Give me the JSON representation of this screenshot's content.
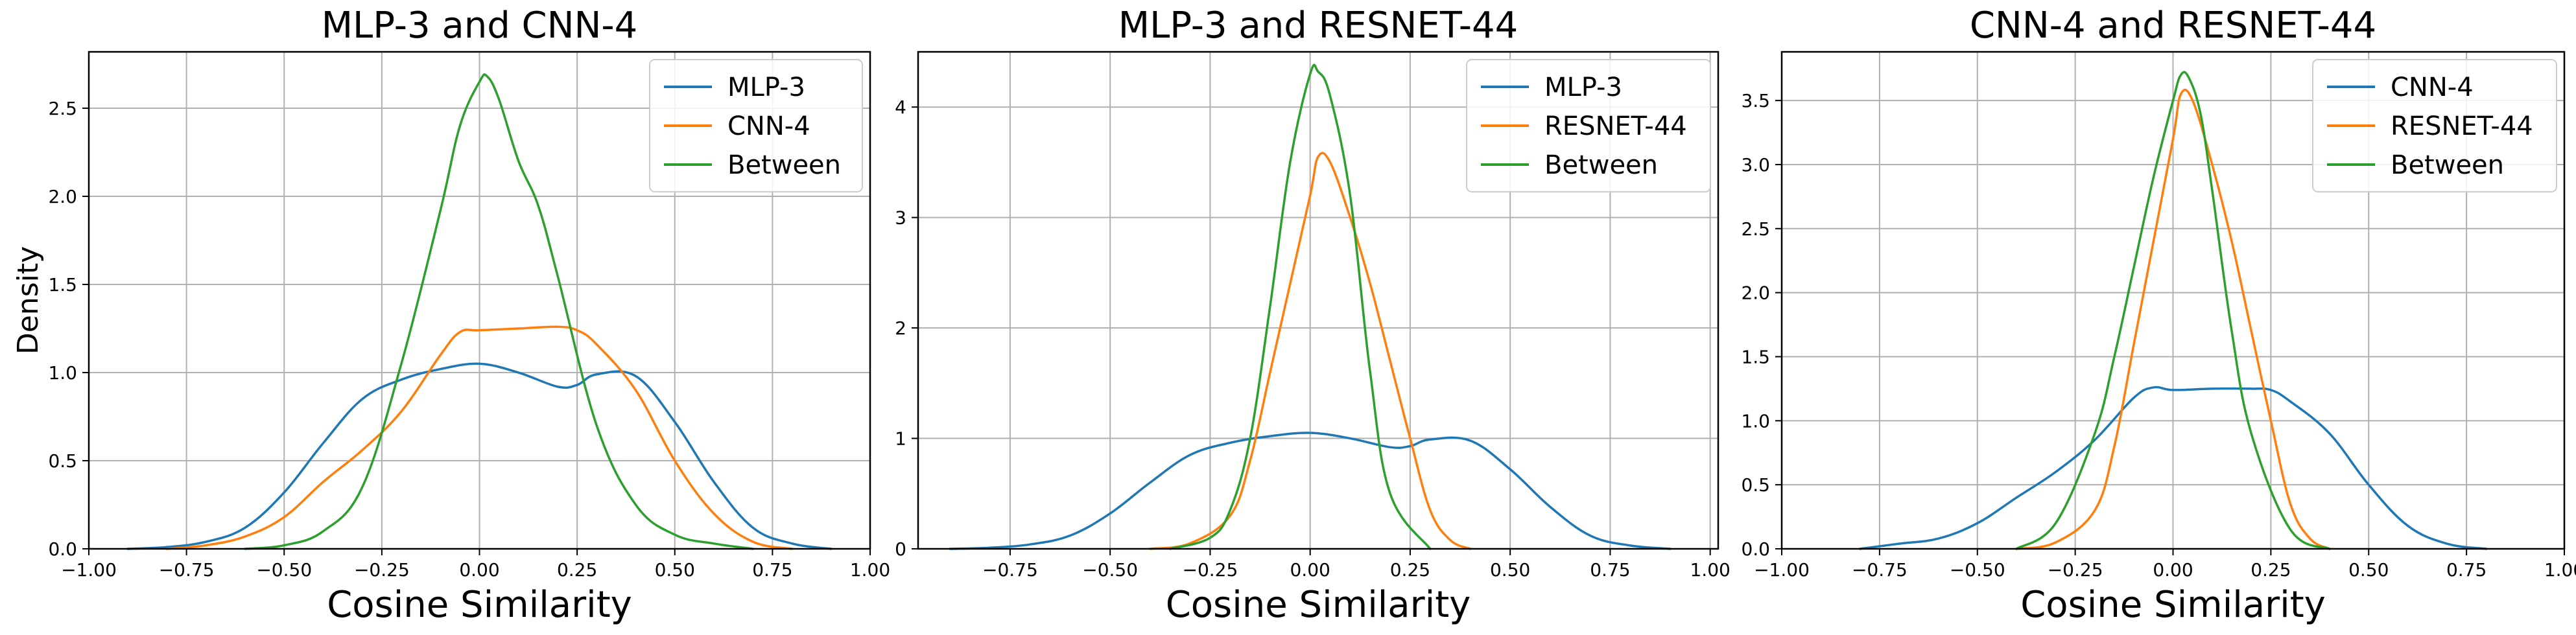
{
  "chart_data": [
    {
      "type": "line",
      "title": "MLP-3 and CNN-4",
      "xlabel": "Cosine Similarity",
      "ylabel": "Density",
      "xlim": [
        -1.0,
        1.0
      ],
      "ylim": [
        0,
        2.82
      ],
      "xticks": [
        -1.0,
        -0.75,
        -0.5,
        -0.25,
        0.0,
        0.25,
        0.5,
        0.75,
        1.0
      ],
      "xtick_labels": [
        "−1.00",
        "−0.75",
        "−0.50",
        "−0.25",
        "0.00",
        "0.25",
        "0.50",
        "0.75",
        "1.00"
      ],
      "yticks": [
        0,
        0.5,
        1.0,
        1.5,
        2.0,
        2.5
      ],
      "ytick_labels": [
        "0.0",
        "0.5",
        "1.0",
        "1.5",
        "2.0",
        "2.5"
      ],
      "grid": true,
      "legend_position": "top-right",
      "series": [
        {
          "name": "MLP-3",
          "color": "#1f77b4",
          "x": [
            -0.9,
            -0.8,
            -0.7,
            -0.6,
            -0.5,
            -0.4,
            -0.3,
            -0.2,
            -0.1,
            0.0,
            0.1,
            0.2,
            0.25,
            0.3,
            0.4,
            0.5,
            0.6,
            0.7,
            0.8,
            0.9
          ],
          "y": [
            0.0,
            0.01,
            0.04,
            0.12,
            0.32,
            0.6,
            0.85,
            0.96,
            1.02,
            1.05,
            1.0,
            0.92,
            0.93,
            0.99,
            0.98,
            0.72,
            0.38,
            0.12,
            0.03,
            0.0
          ]
        },
        {
          "name": "CNN-4",
          "color": "#ff7f0e",
          "x": [
            -0.8,
            -0.7,
            -0.6,
            -0.5,
            -0.4,
            -0.3,
            -0.2,
            -0.1,
            -0.05,
            0.0,
            0.1,
            0.2,
            0.25,
            0.3,
            0.4,
            0.5,
            0.6,
            0.7,
            0.8
          ],
          "y": [
            0.0,
            0.02,
            0.07,
            0.18,
            0.38,
            0.56,
            0.78,
            1.1,
            1.23,
            1.24,
            1.25,
            1.26,
            1.24,
            1.16,
            0.9,
            0.5,
            0.2,
            0.04,
            0.0
          ]
        },
        {
          "name": "Between",
          "color": "#2ca02c",
          "x": [
            -0.6,
            -0.5,
            -0.4,
            -0.3,
            -0.2,
            -0.1,
            -0.05,
            0.0,
            0.02,
            0.05,
            0.1,
            0.15,
            0.2,
            0.3,
            0.4,
            0.5,
            0.6,
            0.7
          ],
          "y": [
            0.0,
            0.02,
            0.1,
            0.35,
            1.05,
            1.92,
            2.4,
            2.65,
            2.68,
            2.55,
            2.2,
            1.95,
            1.55,
            0.7,
            0.25,
            0.08,
            0.03,
            0.0
          ]
        }
      ]
    },
    {
      "type": "line",
      "title": "MLP-3 and RESNET-44",
      "xlabel": "Cosine Similarity",
      "ylabel": "",
      "xlim": [
        -0.98,
        1.02
      ],
      "ylim": [
        0,
        4.5
      ],
      "xticks": [
        -0.75,
        -0.5,
        -0.25,
        0.0,
        0.25,
        0.5,
        0.75,
        1.0
      ],
      "xtick_labels": [
        "−0.75",
        "−0.50",
        "−0.25",
        "0.00",
        "0.25",
        "0.50",
        "0.75",
        "1.00"
      ],
      "yticks": [
        0,
        1,
        2,
        3,
        4
      ],
      "ytick_labels": [
        "0",
        "1",
        "2",
        "3",
        "4"
      ],
      "grid": true,
      "legend_position": "top-right",
      "series": [
        {
          "name": "MLP-3",
          "color": "#1f77b4",
          "x": [
            -0.9,
            -0.8,
            -0.7,
            -0.6,
            -0.5,
            -0.4,
            -0.3,
            -0.2,
            -0.1,
            0.0,
            0.1,
            0.2,
            0.25,
            0.3,
            0.4,
            0.5,
            0.6,
            0.7,
            0.8,
            0.9
          ],
          "y": [
            0.0,
            0.01,
            0.04,
            0.12,
            0.32,
            0.6,
            0.85,
            0.96,
            1.02,
            1.05,
            1.0,
            0.92,
            0.93,
            0.99,
            0.98,
            0.72,
            0.38,
            0.12,
            0.03,
            0.0
          ]
        },
        {
          "name": "RESNET-44",
          "color": "#ff7f0e",
          "x": [
            -0.4,
            -0.3,
            -0.2,
            -0.15,
            -0.1,
            -0.05,
            0.0,
            0.02,
            0.05,
            0.1,
            0.15,
            0.2,
            0.25,
            0.3,
            0.35,
            0.4
          ],
          "y": [
            0.0,
            0.05,
            0.3,
            0.8,
            1.6,
            2.4,
            3.2,
            3.55,
            3.5,
            3.0,
            2.4,
            1.7,
            1.0,
            0.35,
            0.08,
            0.0
          ]
        },
        {
          "name": "Between",
          "color": "#2ca02c",
          "x": [
            -0.35,
            -0.25,
            -0.2,
            -0.15,
            -0.1,
            -0.05,
            0.0,
            0.02,
            0.05,
            0.1,
            0.15,
            0.2,
            0.3
          ],
          "y": [
            0.0,
            0.1,
            0.35,
            1.0,
            2.2,
            3.5,
            4.3,
            4.32,
            4.1,
            3.2,
            1.6,
            0.5,
            0.0
          ]
        }
      ]
    },
    {
      "type": "line",
      "title": "CNN-4 and RESNET-44",
      "xlabel": "Cosine Similarity",
      "ylabel": "",
      "xlim": [
        -1.0,
        1.0
      ],
      "ylim": [
        0,
        3.88
      ],
      "xticks": [
        -1.0,
        -0.75,
        -0.5,
        -0.25,
        0.0,
        0.25,
        0.5,
        0.75,
        1.0
      ],
      "xtick_labels": [
        "−1.00",
        "−0.75",
        "−0.50",
        "−0.25",
        "0.00",
        "0.25",
        "0.50",
        "0.75",
        "1.00"
      ],
      "yticks": [
        0,
        0.5,
        1.0,
        1.5,
        2.0,
        2.5,
        3.0,
        3.5
      ],
      "ytick_labels": [
        "0.0",
        "0.5",
        "1.0",
        "1.5",
        "2.0",
        "2.5",
        "3.0",
        "3.5"
      ],
      "grid": true,
      "legend_position": "top-right",
      "series": [
        {
          "name": "CNN-4",
          "color": "#1f77b4",
          "x": [
            -0.8,
            -0.7,
            -0.6,
            -0.5,
            -0.4,
            -0.3,
            -0.2,
            -0.1,
            -0.05,
            0.0,
            0.1,
            0.2,
            0.25,
            0.3,
            0.4,
            0.5,
            0.6,
            0.7,
            0.8
          ],
          "y": [
            0.0,
            0.04,
            0.08,
            0.2,
            0.4,
            0.6,
            0.85,
            1.18,
            1.26,
            1.24,
            1.25,
            1.25,
            1.24,
            1.15,
            0.9,
            0.5,
            0.18,
            0.04,
            0.0
          ]
        },
        {
          "name": "RESNET-44",
          "color": "#ff7f0e",
          "x": [
            -0.4,
            -0.3,
            -0.2,
            -0.15,
            -0.1,
            -0.05,
            0.0,
            0.02,
            0.05,
            0.1,
            0.15,
            0.2,
            0.25,
            0.3,
            0.35,
            0.4
          ],
          "y": [
            0.0,
            0.05,
            0.3,
            0.8,
            1.6,
            2.4,
            3.2,
            3.55,
            3.5,
            3.0,
            2.4,
            1.7,
            1.0,
            0.35,
            0.08,
            0.0
          ]
        },
        {
          "name": "Between",
          "color": "#2ca02c",
          "x": [
            -0.4,
            -0.3,
            -0.2,
            -0.15,
            -0.1,
            -0.05,
            0.0,
            0.02,
            0.04,
            0.07,
            0.1,
            0.15,
            0.2,
            0.3,
            0.4
          ],
          "y": [
            0.0,
            0.2,
            0.9,
            1.5,
            2.2,
            2.9,
            3.5,
            3.7,
            3.68,
            3.4,
            2.8,
            1.7,
            0.9,
            0.15,
            0.0
          ]
        }
      ]
    }
  ]
}
